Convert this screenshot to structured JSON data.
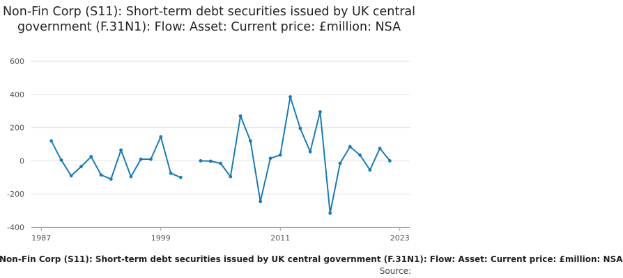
{
  "title": "Non-Fin Corp (S11): Short-term debt securities issued by UK central government (F.31N1): Flow: Asset: Current price: £million: NSA",
  "footer": {
    "series_label": "Non-Fin Corp (S11): Short-term debt securities issued by UK central government (F.31N1): Flow: Asset: Current price: £million: NSA",
    "source_label": "Source:"
  },
  "chart_data": {
    "type": "line",
    "x_ticks": [
      "1987",
      "1999",
      "2011",
      "2023"
    ],
    "y_ticks": [
      "600",
      "400",
      "200",
      "0",
      "-200",
      "-400"
    ],
    "xlim": [
      1986,
      2024
    ],
    "ylim": [
      -400,
      600
    ],
    "grid": true,
    "series": [
      {
        "color": "#1a7ab5",
        "x": [
          1988,
          1989,
          1990,
          1991,
          1992,
          1993,
          1994,
          1995,
          1996,
          1997,
          1998,
          1999,
          2000,
          2001,
          2002,
          2003,
          2004,
          2005,
          2006,
          2007,
          2008,
          2009,
          2010,
          2011,
          2012,
          2013,
          2014,
          2015,
          2016,
          2017,
          2018,
          2019,
          2020,
          2021,
          2022
        ],
        "values": [
          120,
          5,
          -90,
          -35,
          25,
          -85,
          -110,
          65,
          -95,
          10,
          10,
          145,
          -75,
          -100,
          null,
          0,
          -2,
          -15,
          -95,
          270,
          120,
          -245,
          15,
          35,
          385,
          195,
          55,
          295,
          -315,
          -15,
          85,
          35,
          -55,
          75,
          0
        ]
      }
    ]
  }
}
